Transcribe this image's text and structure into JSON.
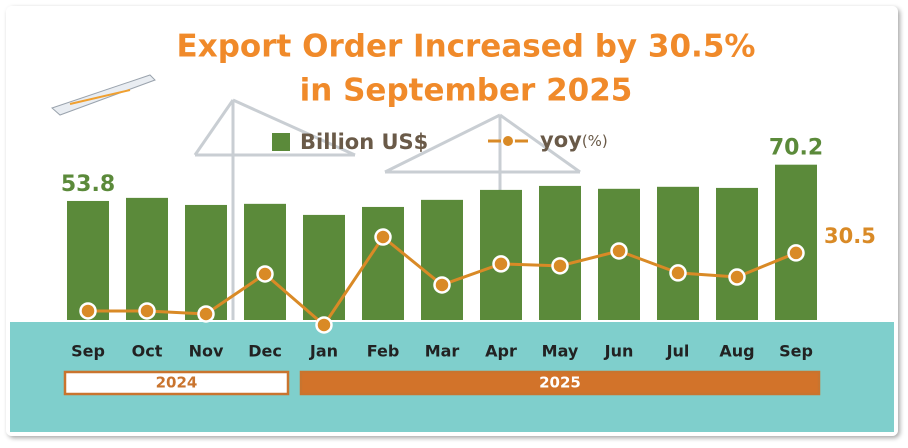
{
  "chart_data": {
    "type": "bar-line",
    "title": [
      "Export Order Increased by 30.5%",
      "in September 2025"
    ],
    "categories": [
      "Sep",
      "Oct",
      "Nov",
      "Dec",
      "Jan",
      "Feb",
      "Mar",
      "Apr",
      "May",
      "Jun",
      "Jul",
      "Aug",
      "Sep"
    ],
    "groups": [
      {
        "label": "2024",
        "span": 4
      },
      {
        "label": "2025",
        "span": 9
      }
    ],
    "series": [
      {
        "name": "Billion US$",
        "color": "#5b8a3a",
        "values": [
          53.8,
          55.2,
          52.0,
          52.5,
          47.5,
          51.1,
          54.3,
          58.8,
          60.6,
          59.3,
          60.2,
          59.7,
          70.2
        ],
        "value_labels": [
          "53.8",
          null,
          null,
          null,
          null,
          null,
          null,
          null,
          null,
          null,
          null,
          null,
          "70.2"
        ]
      },
      {
        "name": "yoy",
        "unit": "(%)",
        "color": "#d98a26",
        "axis": "y2",
        "values": [
          3.5,
          3.5,
          2.1,
          20.7,
          -3.0,
          37.9,
          15.6,
          25.4,
          24.5,
          31.4,
          21.2,
          19.3,
          30.5
        ],
        "value_labels": [
          null,
          null,
          null,
          null,
          null,
          null,
          null,
          null,
          null,
          null,
          null,
          null,
          "30.5"
        ]
      }
    ],
    "ylim": [
      0,
      80
    ],
    "y2lim": [
      -10,
      60
    ]
  }
}
